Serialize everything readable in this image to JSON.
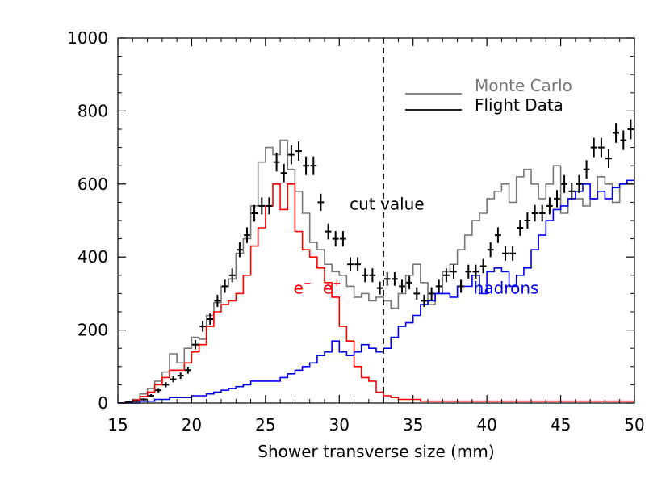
{
  "chart_data": {
    "type": "line",
    "xlabel": "Shower transverse size (mm)",
    "ylabel": "",
    "xlim": [
      15,
      50
    ],
    "ylim": [
      0,
      1000
    ],
    "x_ticks": [
      15,
      20,
      25,
      30,
      35,
      40,
      45,
      50
    ],
    "x_tick_labels": [
      "15",
      "20",
      "25",
      "30",
      "35",
      "40",
      "45",
      "50"
    ],
    "y_ticks": [
      0,
      200,
      400,
      600,
      800,
      1000
    ],
    "y_tick_labels": [
      "0",
      "200",
      "400",
      "600",
      "800",
      "1000"
    ],
    "bin_width": 0.5,
    "bin_start": 15,
    "grid": false,
    "legend_position": "top-right",
    "legend": [
      {
        "label": "Monte Carlo",
        "color": "#777777"
      },
      {
        "label": "Flight Data",
        "color": "#000000"
      }
    ],
    "annotations": {
      "cut": {
        "label": "cut value",
        "x": 33
      },
      "electrons": {
        "label_left": "e",
        "sup_left": "−",
        "label_right": "e",
        "sup_right": "+",
        "color": "#ff0000"
      },
      "hadrons": {
        "label": "hadrons",
        "color": "#0000ee"
      }
    },
    "series": [
      {
        "name": "Monte Carlo",
        "kind": "step",
        "color": "#777777",
        "values": [
          0,
          3,
          10,
          25,
          40,
          60,
          85,
          135,
          110,
          150,
          180,
          175,
          240,
          275,
          320,
          340,
          410,
          450,
          540,
          660,
          700,
          680,
          720,
          640,
          580,
          520,
          440,
          420,
          380,
          360,
          350,
          320,
          290,
          300,
          280,
          290,
          280,
          260,
          300,
          350,
          380,
          330,
          270,
          300,
          360,
          380,
          420,
          460,
          500,
          520,
          560,
          580,
          600,
          550,
          620,
          640,
          600,
          560,
          600,
          650,
          520,
          560,
          560,
          540,
          560,
          620,
          600,
          550,
          600,
          600
        ]
      },
      {
        "name": "Electrons",
        "kind": "step",
        "color": "#ff0000",
        "values": [
          0,
          2,
          8,
          18,
          30,
          50,
          70,
          90,
          90,
          110,
          140,
          160,
          210,
          250,
          270,
          280,
          300,
          350,
          430,
          480,
          540,
          600,
          530,
          600,
          470,
          420,
          400,
          370,
          330,
          290,
          210,
          170,
          100,
          70,
          60,
          30,
          20,
          15,
          10,
          10,
          10,
          5,
          5,
          5,
          5,
          5,
          5,
          5,
          5,
          5,
          5,
          5,
          5,
          5,
          5,
          5,
          5,
          5,
          5,
          5,
          5,
          5,
          5,
          5,
          5,
          5,
          5,
          5,
          5,
          5
        ]
      },
      {
        "name": "Hadrons",
        "kind": "step",
        "color": "#0000ee",
        "values": [
          0,
          0,
          0,
          5,
          5,
          10,
          10,
          15,
          15,
          15,
          20,
          20,
          25,
          30,
          35,
          40,
          45,
          50,
          60,
          60,
          60,
          60,
          70,
          80,
          90,
          100,
          110,
          130,
          140,
          170,
          140,
          130,
          140,
          160,
          150,
          140,
          150,
          180,
          210,
          220,
          240,
          270,
          280,
          300,
          300,
          290,
          320,
          320,
          350,
          300,
          360,
          370,
          360,
          320,
          350,
          370,
          420,
          460,
          500,
          530,
          540,
          560,
          580,
          600,
          560,
          580,
          560,
          590,
          600,
          610
        ]
      },
      {
        "name": "Flight Data",
        "kind": "points",
        "color": "#000000",
        "x": [
          15.75,
          16.25,
          16.75,
          17.25,
          17.75,
          18.25,
          18.75,
          19.25,
          19.75,
          20.25,
          20.75,
          21.25,
          21.75,
          22.25,
          22.75,
          23.25,
          23.75,
          24.25,
          24.75,
          25.25,
          25.75,
          26.25,
          26.75,
          27.25,
          27.75,
          28.25,
          28.75,
          29.25,
          29.75,
          30.25,
          30.75,
          31.25,
          31.75,
          32.25,
          32.75,
          33.25,
          33.75,
          34.25,
          34.75,
          35.25,
          35.75,
          36.25,
          36.75,
          37.25,
          37.75,
          38.25,
          38.75,
          39.25,
          39.75,
          40.25,
          40.75,
          41.25,
          41.75,
          42.25,
          42.75,
          43.25,
          43.75,
          44.25,
          44.75,
          45.25,
          45.75,
          46.25,
          46.75,
          47.25,
          47.75,
          48.25,
          48.75,
          49.25,
          49.75
        ],
        "y": [
          3,
          5,
          10,
          20,
          35,
          50,
          65,
          75,
          90,
          160,
          210,
          230,
          280,
          320,
          350,
          420,
          460,
          520,
          540,
          540,
          660,
          630,
          680,
          690,
          650,
          650,
          550,
          470,
          450,
          450,
          380,
          380,
          350,
          350,
          315,
          340,
          340,
          320,
          330,
          300,
          280,
          300,
          320,
          350,
          360,
          320,
          360,
          360,
          375,
          420,
          460,
          410,
          410,
          480,
          500,
          520,
          520,
          540,
          560,
          600,
          580,
          600,
          640,
          700,
          700,
          670,
          740,
          720,
          750
        ]
      }
    ]
  }
}
